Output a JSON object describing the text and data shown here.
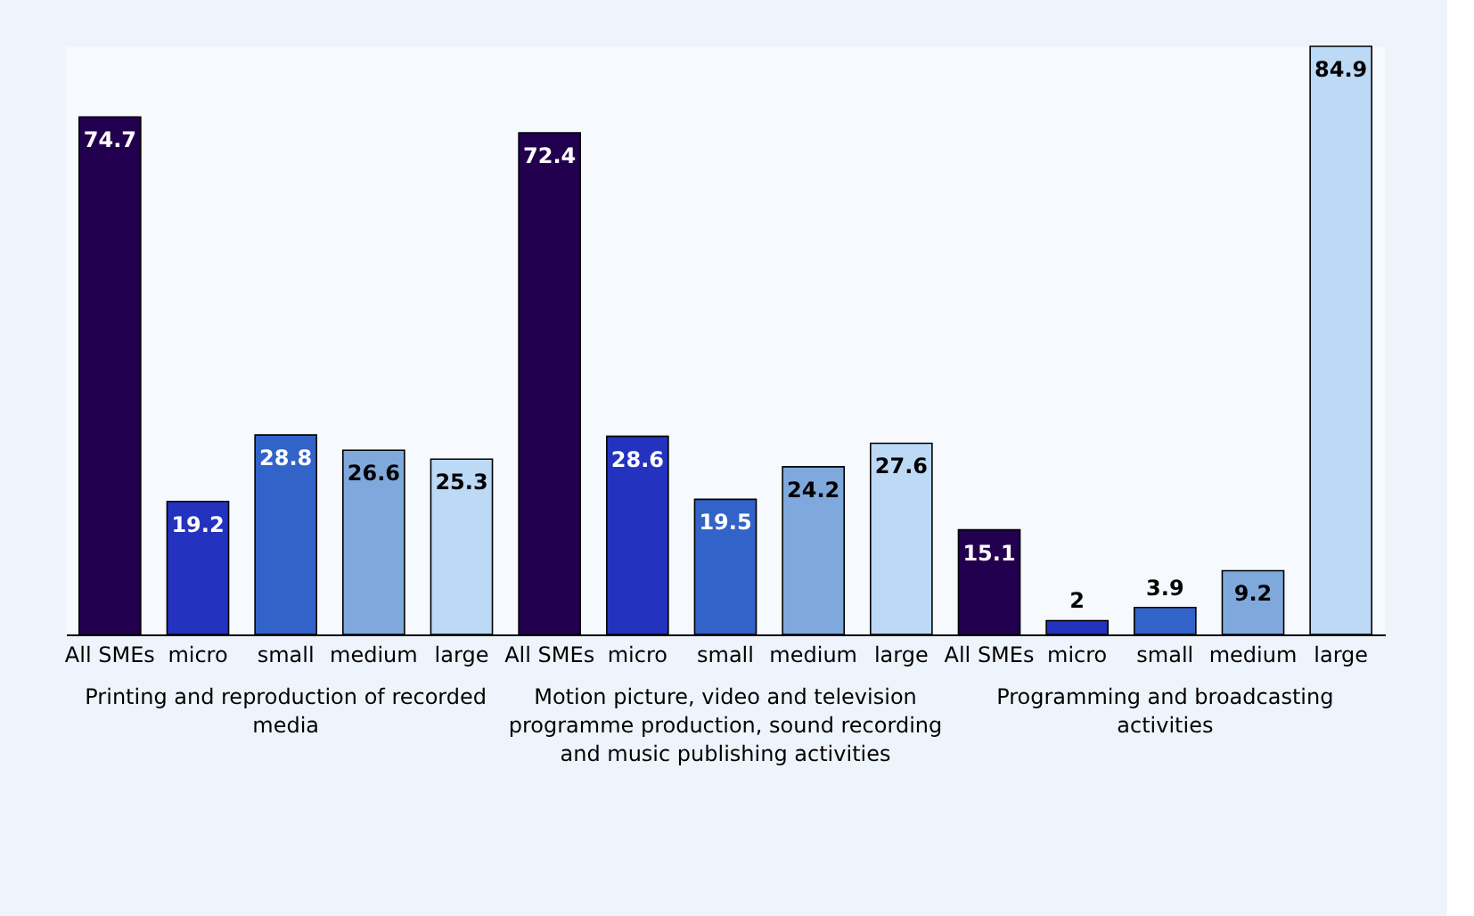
{
  "chart_data": {
    "type": "bar",
    "categories": [
      "Printing and reproduction of recorded media",
      "Motion picture, video and television programme production, sound recording and music publishing activities",
      "Programming and broadcasting activities"
    ],
    "series": [
      {
        "name": "All SMEs",
        "color": "#22004f",
        "values": [
          74.7,
          72.4,
          15.1
        ]
      },
      {
        "name": "micro",
        "color": "#2432c0",
        "values": [
          19.2,
          28.6,
          2
        ]
      },
      {
        "name": "small",
        "color": "#3263c8",
        "values": [
          28.8,
          19.5,
          3.9
        ]
      },
      {
        "name": "medium",
        "color": "#7fa9dc",
        "values": [
          26.6,
          24.2,
          9.2
        ]
      },
      {
        "name": "large",
        "color": "#bcd9f5",
        "values": [
          25.3,
          27.6,
          84.9
        ]
      }
    ],
    "data_labels": true
  }
}
